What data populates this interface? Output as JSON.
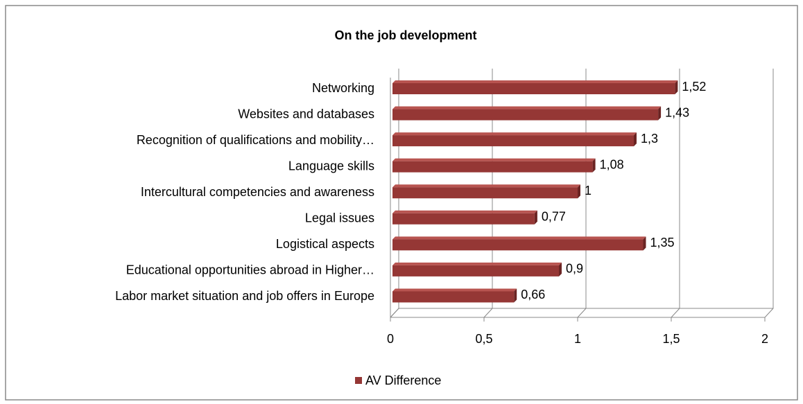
{
  "chart_data": {
    "type": "bar",
    "orientation": "horizontal",
    "title": "On the job development",
    "categories": [
      "Networking",
      "Websites and databases",
      "Recognition of qualifications and mobility…",
      "Language skills",
      "Intercultural competencies and awareness",
      "Legal issues",
      "Logistical aspects",
      "Educational opportunities abroad in Higher…",
      "Labor market situation and job offers in Europe"
    ],
    "series": [
      {
        "name": "AV Difference",
        "color": "#953735",
        "values": [
          1.52,
          1.43,
          1.3,
          1.08,
          1,
          0.77,
          1.35,
          0.9,
          0.66
        ],
        "value_labels": [
          "1,52",
          "1,43",
          "1,3",
          "1,08",
          "1",
          "0,77",
          "1,35",
          "0,9",
          "0,66"
        ]
      }
    ],
    "xlim": [
      0,
      2
    ],
    "xticks": [
      0,
      {
        "value": 0.5,
        "label": "0,5"
      },
      1,
      {
        "value": 1.5,
        "label": "1,5"
      },
      2
    ],
    "grid": true,
    "legend": "bottom"
  }
}
